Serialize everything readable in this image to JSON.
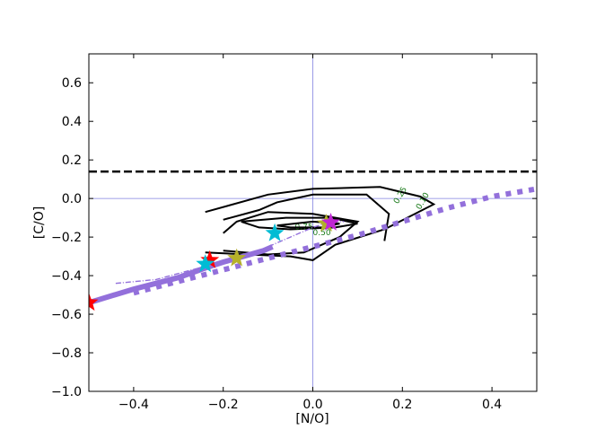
{
  "chart_data": {
    "type": "line",
    "xlabel": "[N/O]",
    "ylabel": "[C/O]",
    "xlim": [
      -0.5,
      0.5
    ],
    "ylim": [
      -1.0,
      0.75
    ],
    "x_ticks": [
      {
        "value": -0.4,
        "label": "−0.4"
      },
      {
        "value": -0.2,
        "label": "−0.2"
      },
      {
        "value": 0.0,
        "label": "0.0"
      },
      {
        "value": 0.2,
        "label": "0.2"
      },
      {
        "value": 0.4,
        "label": "0.4"
      }
    ],
    "y_ticks": [
      {
        "value": -1.0,
        "label": "−1.0"
      },
      {
        "value": -0.8,
        "label": "−0.8"
      },
      {
        "value": -0.6,
        "label": "−0.6"
      },
      {
        "value": -0.4,
        "label": "−0.4"
      },
      {
        "value": -0.2,
        "label": "−0.2"
      },
      {
        "value": 0.0,
        "label": "0.0"
      },
      {
        "value": 0.2,
        "label": "0.2"
      },
      {
        "value": 0.4,
        "label": "0.4"
      },
      {
        "value": 0.6,
        "label": "0.6"
      }
    ],
    "reference_lines": {
      "vertical_x": 0.0,
      "horizontal_y": 0.0,
      "dashed_y": 0.14,
      "ref_color": "#8080e0"
    },
    "contours": [
      {
        "label": "0.10",
        "label_at": [
          0.24,
          -0.06
        ],
        "points": [
          [
            -0.24,
            -0.28
          ],
          [
            -0.05,
            -0.3
          ],
          [
            0.0,
            -0.32
          ],
          [
            0.05,
            -0.24
          ],
          [
            0.16,
            -0.16
          ],
          [
            0.27,
            -0.03
          ],
          [
            0.24,
            0.01
          ],
          [
            0.15,
            0.06
          ],
          [
            0.0,
            0.05
          ],
          [
            -0.1,
            0.02
          ],
          [
            -0.24,
            -0.07
          ]
        ]
      },
      {
        "label": "0.25",
        "label_at": [
          0.19,
          -0.03
        ],
        "points": [
          [
            -0.2,
            -0.11
          ],
          [
            -0.12,
            -0.06
          ],
          [
            -0.08,
            -0.02
          ],
          [
            0.0,
            0.02
          ],
          [
            0.12,
            0.02
          ],
          [
            0.17,
            -0.08
          ],
          [
            0.16,
            -0.22
          ]
        ]
      },
      {
        "label": "0.50",
        "label_at": [
          0.0,
          -0.19
        ],
        "points": [
          [
            -0.2,
            -0.27
          ],
          [
            -0.1,
            -0.29
          ],
          [
            -0.02,
            -0.28
          ],
          [
            0.06,
            -0.2
          ],
          [
            0.1,
            -0.12
          ],
          [
            0.0,
            -0.08
          ],
          [
            -0.1,
            -0.07
          ],
          [
            -0.17,
            -0.12
          ],
          [
            -0.2,
            -0.18
          ]
        ]
      },
      {
        "label": "0.75",
        "label_at": [
          -0.04,
          -0.16
        ],
        "points": [
          [
            -0.16,
            -0.12
          ],
          [
            -0.06,
            -0.1
          ],
          [
            0.04,
            -0.1
          ],
          [
            0.1,
            -0.13
          ],
          [
            0.05,
            -0.15
          ],
          [
            -0.05,
            -0.16
          ],
          [
            -0.12,
            -0.15
          ],
          [
            -0.16,
            -0.12
          ]
        ]
      },
      {
        "label": "",
        "label_at": null,
        "points": [
          [
            -0.08,
            -0.14
          ],
          [
            0.0,
            -0.12
          ],
          [
            0.06,
            -0.13
          ],
          [
            0.02,
            -0.15
          ],
          [
            -0.05,
            -0.15
          ],
          [
            -0.08,
            -0.14
          ]
        ]
      }
    ],
    "tracks": [
      {
        "style": "solid",
        "color": "#9370db",
        "points": [
          [
            -0.5,
            -0.54
          ],
          [
            -0.4,
            -0.47
          ],
          [
            -0.3,
            -0.41
          ],
          [
            -0.24,
            -0.36
          ],
          [
            -0.2,
            -0.33
          ],
          [
            -0.17,
            -0.31
          ],
          [
            -0.14,
            -0.29
          ],
          [
            -0.11,
            -0.27
          ],
          [
            -0.09,
            -0.25
          ]
        ]
      },
      {
        "style": "dotted",
        "color": "#9370db",
        "points": [
          [
            -0.4,
            -0.49
          ],
          [
            -0.3,
            -0.43
          ],
          [
            -0.2,
            -0.37
          ],
          [
            -0.1,
            -0.31
          ],
          [
            0.0,
            -0.25
          ],
          [
            0.1,
            -0.19
          ],
          [
            0.2,
            -0.12
          ],
          [
            0.3,
            -0.05
          ],
          [
            0.4,
            0.01
          ],
          [
            0.5,
            0.05
          ]
        ]
      },
      {
        "style": "dashdot",
        "color": "#9370db",
        "points": [
          [
            -0.44,
            -0.44
          ],
          [
            -0.35,
            -0.42
          ],
          [
            -0.27,
            -0.37
          ],
          [
            -0.2,
            -0.33
          ],
          [
            -0.12,
            -0.27
          ],
          [
            -0.05,
            -0.2
          ],
          [
            0.0,
            -0.15
          ],
          [
            0.04,
            -0.12
          ],
          [
            0.07,
            -0.12
          ]
        ]
      }
    ],
    "stars": [
      {
        "x": -0.5,
        "y": -0.54,
        "color": "#ff0000"
      },
      {
        "x": -0.23,
        "y": -0.32,
        "color": "#ff0000"
      },
      {
        "x": -0.24,
        "y": -0.34,
        "color": "#00bcd4"
      },
      {
        "x": -0.17,
        "y": -0.31,
        "color": "#b5b02a"
      },
      {
        "x": -0.085,
        "y": -0.18,
        "color": "#00bcd4"
      },
      {
        "x": 0.03,
        "y": -0.13,
        "color": "#b0b02a"
      },
      {
        "x": 0.04,
        "y": -0.125,
        "color": "#c026d3"
      }
    ]
  }
}
